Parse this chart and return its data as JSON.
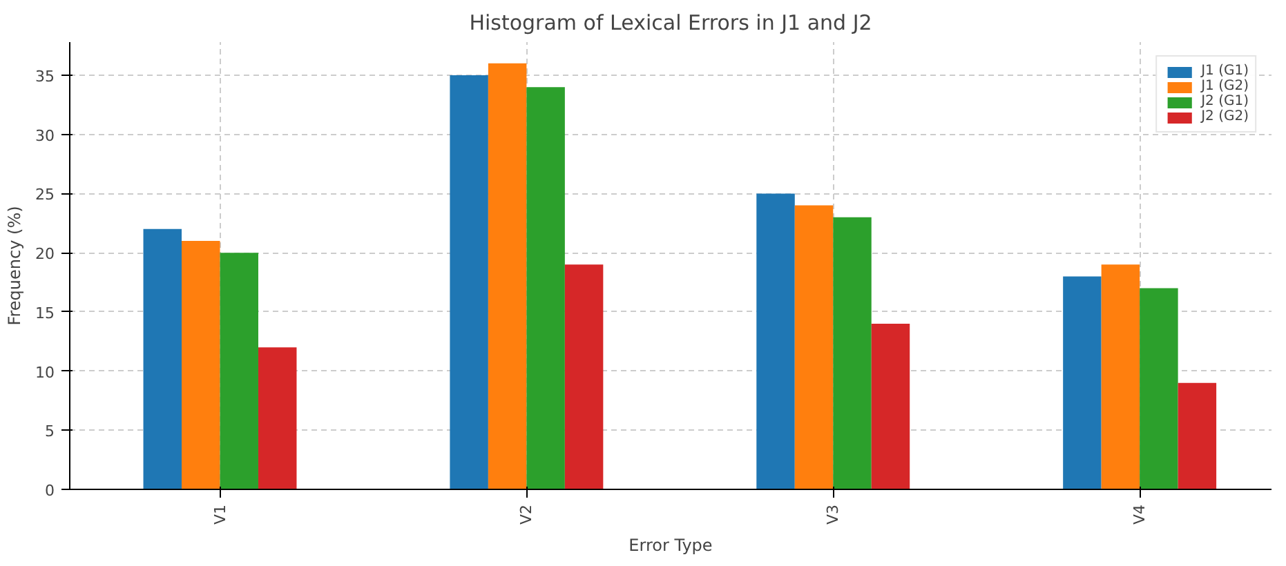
{
  "chart_data": {
    "type": "bar",
    "title": "Histogram of Lexical Errors in J1 and J2",
    "xlabel": "Error Type",
    "ylabel": "Frequency (%)",
    "categories": [
      "V1",
      "V2",
      "V3",
      "V4"
    ],
    "series": [
      {
        "name": "J1 (G1)",
        "color": "#1f77b4",
        "values": [
          22,
          35,
          25,
          18
        ]
      },
      {
        "name": "J1 (G2)",
        "color": "#ff7f0e",
        "values": [
          21,
          36,
          24,
          19
        ]
      },
      {
        "name": "J2 (G1)",
        "color": "#2ca02c",
        "values": [
          20,
          34,
          23,
          17
        ]
      },
      {
        "name": "J2 (G2)",
        "color": "#d62728",
        "values": [
          12,
          19,
          14,
          9
        ]
      }
    ],
    "ylim": [
      0,
      37.8
    ],
    "yticks": [
      0,
      5,
      10,
      15,
      20,
      25,
      30,
      35
    ],
    "grid": true,
    "legend": "top right"
  }
}
